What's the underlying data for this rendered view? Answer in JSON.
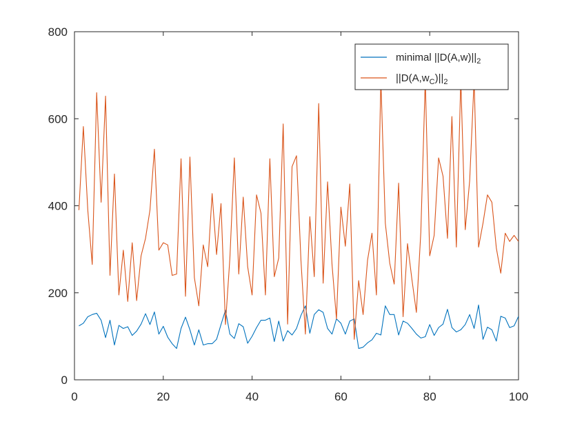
{
  "colors": {
    "series_1": "#0072BD",
    "series_2": "#D95319",
    "axes": "#262626",
    "background": "#ffffff"
  },
  "chart_data": {
    "type": "line",
    "title": "",
    "xlabel": "",
    "ylabel": "",
    "xlim": [
      0,
      100
    ],
    "ylim": [
      0,
      800
    ],
    "xticks": [
      0,
      20,
      40,
      60,
      80,
      100
    ],
    "yticks": [
      0,
      200,
      400,
      600,
      800
    ],
    "grid": false,
    "legend_position": "top-right",
    "legend": [
      {
        "base": "minimal ||D(A,w)||",
        "sub_mid": "",
        "tail": "",
        "sub_end": "2"
      },
      {
        "base": "||D(A,w",
        "sub_mid": "C",
        "tail": ")||",
        "sub_end": "2"
      }
    ],
    "x": [
      1,
      2,
      3,
      4,
      5,
      6,
      7,
      8,
      9,
      10,
      11,
      12,
      13,
      14,
      15,
      16,
      17,
      18,
      19,
      20,
      21,
      22,
      23,
      24,
      25,
      26,
      27,
      28,
      29,
      30,
      31,
      32,
      33,
      34,
      35,
      36,
      37,
      38,
      39,
      40,
      41,
      42,
      43,
      44,
      45,
      46,
      47,
      48,
      49,
      50,
      51,
      52,
      53,
      54,
      55,
      56,
      57,
      58,
      59,
      60,
      61,
      62,
      63,
      64,
      65,
      66,
      67,
      68,
      69,
      70,
      71,
      72,
      73,
      74,
      75,
      76,
      77,
      78,
      79,
      80,
      81,
      82,
      83,
      84,
      85,
      86,
      87,
      88,
      89,
      90,
      91,
      92,
      93,
      94,
      95,
      96,
      97,
      98,
      99,
      100
    ],
    "series": [
      {
        "values": [
          124,
          130,
          145,
          150,
          153,
          137,
          97,
          137,
          80,
          125,
          118,
          122,
          102,
          112,
          128,
          152,
          127,
          156,
          105,
          123,
          98,
          83,
          72,
          118,
          144,
          115,
          80,
          115,
          80,
          83,
          83,
          93,
          127,
          160,
          105,
          95,
          129,
          122,
          84,
          100,
          120,
          137,
          137,
          142,
          88,
          135,
          89,
          113,
          103,
          118,
          148,
          170,
          107,
          150,
          161,
          155,
          118,
          105,
          140,
          130,
          105,
          135,
          140,
          72,
          75,
          85,
          92,
          107,
          103,
          170,
          150,
          150,
          103,
          135,
          130,
          118,
          105,
          96,
          99,
          127,
          102,
          120,
          128,
          162,
          120,
          110,
          115,
          127,
          150,
          118,
          172,
          93,
          121,
          115,
          89,
          146,
          142,
          120,
          124,
          146
        ]
      },
      {
        "values": [
          390,
          582,
          390,
          265,
          660,
          408,
          652,
          240,
          473,
          195,
          298,
          180,
          315,
          182,
          285,
          325,
          390,
          530,
          298,
          315,
          310,
          240,
          243,
          508,
          192,
          512,
          235,
          170,
          310,
          260,
          428,
          288,
          405,
          127,
          280,
          510,
          243,
          420,
          260,
          195,
          425,
          383,
          195,
          508,
          237,
          280,
          588,
          128,
          490,
          515,
          275,
          105,
          375,
          237,
          635,
          222,
          455,
          265,
          140,
          397,
          307,
          450,
          93,
          228,
          150,
          275,
          337,
          195,
          690,
          360,
          268,
          220,
          452,
          145,
          313,
          230,
          155,
          340,
          690,
          285,
          332,
          510,
          468,
          325,
          605,
          305,
          690,
          345,
          458,
          690,
          305,
          360,
          425,
          408,
          303,
          245,
          337,
          318,
          332,
          318
        ]
      }
    ]
  }
}
